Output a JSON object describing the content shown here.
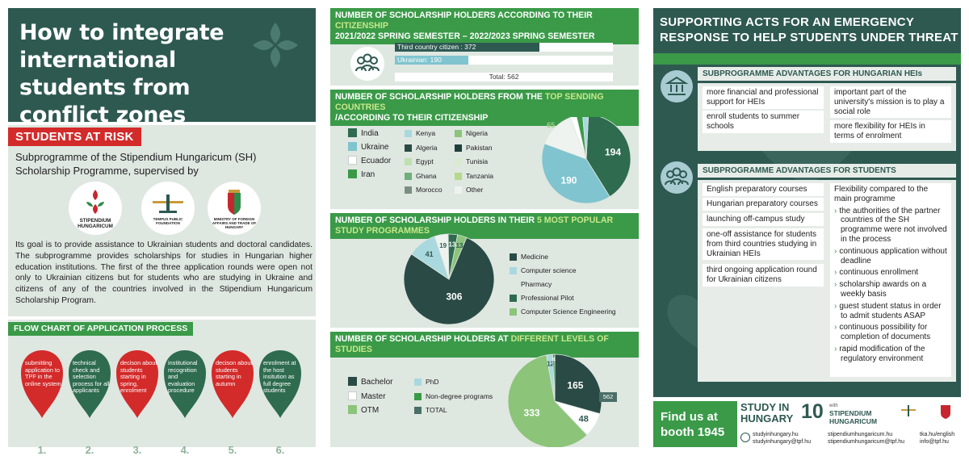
{
  "left": {
    "title": "How to integrate international students from conflict zones",
    "risk_tag": "STUDENTS AT RISK",
    "risk_sub": "Subprogramme of the Stipendium Hungaricum (SH) Scholarship Programme, supervised by",
    "logos": [
      {
        "text": "STIPENDIUM HUNGARICUM",
        "icon": "stipendium-hungaricum-logo"
      },
      {
        "text": "TEMPUS PUBLIC FOUNDATION",
        "icon": "tempus-public-foundation-logo"
      },
      {
        "text": "MINISTRY OF FOREIGN AFFAIRS AND TRADE OF HUNGARY",
        "icon": "ministry-coat-of-arms-logo"
      }
    ],
    "risk_para": "Its goal is to provide assistance to Ukrainian students and doctoral candidates. The subprogramme provides scholarships for studies in Hungarian higher education institutions. The first of the three application rounds were open not only to Ukrainian citizens but for students who are studying in Ukraine and citizens of any of the countries involved in the Stipendium Hungaricum Scholarship Program.",
    "flow_tag": "FLOW CHART OF APPLICATION PROCESS",
    "flow_steps": [
      {
        "num": "1.",
        "text": "submitting application to TPF in the online system",
        "color": "#d32a2a"
      },
      {
        "num": "2.",
        "text": "technical check and selection process for all applicants",
        "color": "#2e6b4f"
      },
      {
        "num": "3.",
        "text": "decison about students starting in spring, enrolment",
        "color": "#d32a2a"
      },
      {
        "num": "4.",
        "text": "institutional recognition and evaluation procedure",
        "color": "#2e6b4f"
      },
      {
        "num": "5.",
        "text": "decison about students starting in autumn",
        "color": "#d32a2a"
      },
      {
        "num": "6.",
        "text": "enrolment at the host insitution as full degree students",
        "color": "#2e6b4f"
      }
    ]
  },
  "citizenship": {
    "head_a": "NUMBER OF SCHOLARSHIP HOLDERS ACCORDING TO THEIR ",
    "head_hl": "CITIZENSHIP",
    "head_b": "2021/2022 SPRING SEMESTER – 2022/2023 SPRING SEMESTER",
    "icon": "students-group-icon",
    "rows": [
      {
        "label": "Third country citizen : 372",
        "value": 372,
        "color": "#2e5951"
      },
      {
        "label": "Ukrainian: 190",
        "value": 190,
        "color": "#7fc4cf"
      }
    ],
    "total_label": "Total: 562",
    "total": 562
  },
  "top_countries": {
    "head_a": "NUMBER OF SCHOLARSHIP HOLDERS FROM THE ",
    "head_hl": "TOP SENDING COUNTRIES",
    "head_b": "/ACCORDING TO THEIR CITIZENSHIP",
    "legend_major": [
      {
        "label": "India",
        "color": "#2e6b4f"
      },
      {
        "label": "Ukraine",
        "color": "#7fc4cf"
      },
      {
        "label": "Ecuador",
        "color": "#ffffff"
      },
      {
        "label": "Iran",
        "color": "#3a9a48"
      }
    ],
    "legend_minor": [
      {
        "label": "Kenya",
        "color": "#a9d8de"
      },
      {
        "label": "Algeria",
        "color": "#2a4a45"
      },
      {
        "label": "Egypt",
        "color": "#bfe0b0"
      },
      {
        "label": "Ghana",
        "color": "#6fae7a"
      },
      {
        "label": "Morocco",
        "color": "#7a8f80"
      },
      {
        "label": "Nigeria",
        "color": "#8cc47a"
      },
      {
        "label": "Pakistan",
        "color": "#1f3f3a"
      },
      {
        "label": "Tunisia",
        "color": "#d8ebd0"
      },
      {
        "label": "Tanzania",
        "color": "#b4d98a"
      },
      {
        "label": "Other",
        "color": "#eef3ef"
      }
    ],
    "data_labels": [
      "194",
      "190",
      "65",
      "11",
      "11",
      "10"
    ]
  },
  "programmes": {
    "head_a": "NUMBER OF SCHOLARSHIP HOLDERS IN THEIR ",
    "head_hl": "5 MOST POPULAR STUDY PROGRAMMES",
    "legend": [
      {
        "label": "Medicine",
        "color": "#2a4a45"
      },
      {
        "label": "Computer science",
        "color": "#a9d8de"
      },
      {
        "label": "Pharmacy",
        "color": "#dfe7e1"
      },
      {
        "label": "Professional Pilot",
        "color": "#2e6b4f"
      },
      {
        "label": "Computer Science Engineering",
        "color": "#8cc47a"
      }
    ]
  },
  "levels": {
    "head_a": "NUMBER OF SCHOLARSHIP HOLDERS AT ",
    "head_hl": "DIFFERENT LEVELS OF STUDIES",
    "legend": [
      {
        "label": "Bachelor",
        "color": "#2a4a45"
      },
      {
        "label": "Master",
        "color": "#ffffff"
      },
      {
        "label": "OTM",
        "color": "#8cc47a"
      },
      {
        "label": "PhD",
        "color": "#a9d8de"
      },
      {
        "label": "Non-degree programs",
        "color": "#3a9a48"
      },
      {
        "label": "TOTAL",
        "color": "#4a6e68"
      }
    ],
    "total_badge": "562"
  },
  "chart_data": [
    {
      "type": "bar",
      "categories": [
        "Third country citizen",
        "Ukrainian"
      ],
      "values": [
        372,
        190
      ],
      "total": 562
    },
    {
      "type": "pie",
      "labels": [
        "India",
        "Ukraine",
        "Other",
        "Ecuador",
        "Iran",
        "Kenya"
      ],
      "values": [
        194,
        190,
        65,
        11,
        11,
        10
      ]
    },
    {
      "type": "pie",
      "labels": [
        "Medicine",
        "Computer science",
        "Pharmacy",
        "Professional Pilot",
        "Computer Science Engineering"
      ],
      "values": [
        306,
        41,
        19,
        13,
        13
      ]
    },
    {
      "type": "pie",
      "labels": [
        "Bachelor",
        "Master",
        "OTM",
        "PhD",
        "Non-degree programs"
      ],
      "values": [
        165,
        48,
        333,
        12,
        4
      ],
      "total": 562
    }
  ],
  "right": {
    "title": "SUPPORTING ACTS FOR AN EMERGENCY RESPONSE TO HELP STUDENTS UNDER THREAT",
    "hei_head": "SUBPROGRAMME ADVANTAGES FOR HUNGARIAN HEIs",
    "hei_icon": "university-building-icon",
    "hei_left": [
      "more financial and professional support for HEIs",
      "enroll students to summer schools"
    ],
    "hei_right": [
      "important part of the university's mission is to play a social role",
      "more flexibility for HEIs in terms of enrolment"
    ],
    "stu_head": "SUBPROGRAMME ADVANTAGES FOR STUDENTS",
    "stu_icon": "students-group-icon",
    "stu_left": [
      "English preparatory courses",
      "Hungarian preparatory courses",
      "launching off-campus study",
      "one-off assistance for students from third countries studying in Ukrainian HEIs",
      "third ongoing application round for Ukrainian citizens"
    ],
    "stu_right_title": "Flexibility compared to the main programme",
    "stu_right": [
      "the authorities of the partner countries of the SH programme were not involved in the process",
      "continuous application without deadline",
      "continuous enrollment",
      "scholarship awards on a weekly basis",
      "guest student status in order to admit students ASAP",
      "continuous possibility for completion of documents",
      "rapid modification of the regulatory environment"
    ]
  },
  "footer": {
    "find": "Find us at booth 1945",
    "study_a": "STUDY IN",
    "study_b": "HUNGARY",
    "ten": "10",
    "with": "with",
    "stip_a": "STIPENDIUM",
    "stip_b": "HUNGARICUM",
    "links_a": [
      "studyinhungary.hu",
      "studyinhungary@tpf.hu"
    ],
    "links_b": [
      "stipendiumhungaricum.hu",
      "stipendiumhungaricum@tpf.hu"
    ],
    "links_c": [
      "tka.hu/english",
      "info@tpf.hu"
    ]
  }
}
